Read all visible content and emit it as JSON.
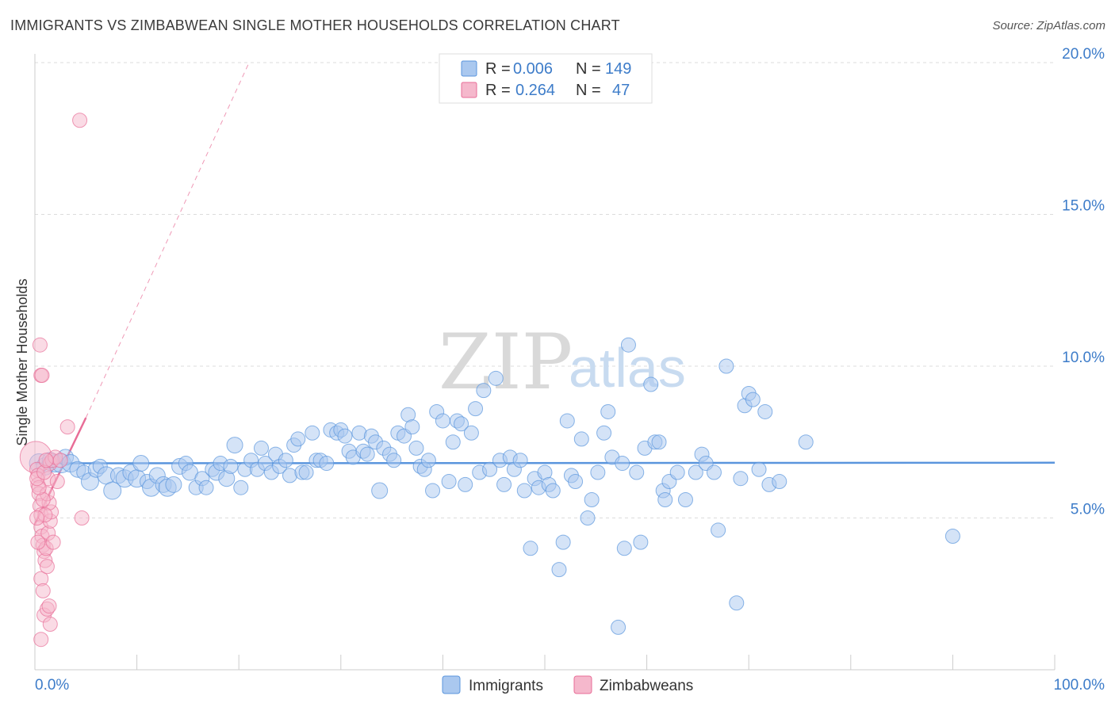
{
  "header": {
    "title": "IMMIGRANTS VS ZIMBABWEAN SINGLE MOTHER HOUSEHOLDS CORRELATION CHART",
    "source": "Source: ZipAtlas.com"
  },
  "watermark": {
    "zip": "ZIP",
    "atlas": "atlas"
  },
  "legend": {
    "rows": [
      {
        "r_label": "R =",
        "r_value": "0.006",
        "n_label": "N =",
        "n_value": "149",
        "color": "#aac8ef"
      },
      {
        "r_label": "R =",
        "r_value": "0.264",
        "n_label": "N =",
        "n_value": "47",
        "color": "#f5b8cc"
      }
    ]
  },
  "bottom_legend": {
    "items": [
      {
        "label": "Immigrants",
        "color": "#aac8ef"
      },
      {
        "label": "Zimbabweans",
        "color": "#f5b8cc"
      }
    ]
  },
  "chart_data": {
    "type": "scatter",
    "title": "IMMIGRANTS VS ZIMBABWEAN SINGLE MOTHER HOUSEHOLDS CORRELATION CHART",
    "xlabel": "",
    "ylabel": "Single Mother Households",
    "xlim": [
      0,
      100
    ],
    "ylim": [
      0,
      20.5
    ],
    "x_tick_labels": [
      "0.0%",
      "100.0%"
    ],
    "y_ticks": [
      5,
      10,
      15,
      20
    ],
    "y_tick_labels": [
      "5.0%",
      "10.0%",
      "15.0%",
      "20.0%"
    ],
    "grid": true,
    "legend_position": "top-center",
    "series": [
      {
        "name": "Immigrants",
        "color": "#5a95dd",
        "fill": "#aac8ef",
        "trend": {
          "x": [
            0,
            100
          ],
          "y": [
            6.8,
            6.82
          ]
        },
        "points": [
          [
            0.4,
            6.8
          ],
          [
            1.0,
            6.7
          ],
          [
            1.5,
            6.9
          ],
          [
            2.0,
            6.8
          ],
          [
            2.6,
            6.8
          ],
          [
            3.0,
            7.0
          ],
          [
            3.5,
            6.8
          ],
          [
            4.2,
            6.6
          ],
          [
            4.8,
            6.5
          ],
          [
            5.4,
            6.2
          ],
          [
            6.0,
            6.6
          ],
          [
            6.4,
            6.7
          ],
          [
            7.0,
            6.4
          ],
          [
            7.6,
            5.9
          ],
          [
            8.2,
            6.4
          ],
          [
            8.8,
            6.3
          ],
          [
            9.4,
            6.5
          ],
          [
            10.0,
            6.3
          ],
          [
            10.4,
            6.8
          ],
          [
            11.0,
            6.2
          ],
          [
            11.4,
            6.0
          ],
          [
            12.0,
            6.4
          ],
          [
            12.6,
            6.1
          ],
          [
            13.0,
            6.0
          ],
          [
            13.6,
            6.1
          ],
          [
            14.2,
            6.7
          ],
          [
            14.8,
            6.8
          ],
          [
            15.2,
            6.5
          ],
          [
            15.8,
            6.0
          ],
          [
            16.4,
            6.3
          ],
          [
            16.8,
            6.0
          ],
          [
            17.4,
            6.6
          ],
          [
            17.8,
            6.5
          ],
          [
            18.2,
            6.8
          ],
          [
            18.8,
            6.3
          ],
          [
            19.2,
            6.7
          ],
          [
            19.6,
            7.4
          ],
          [
            20.2,
            6.0
          ],
          [
            20.6,
            6.6
          ],
          [
            21.2,
            6.9
          ],
          [
            21.8,
            6.6
          ],
          [
            22.2,
            7.3
          ],
          [
            22.6,
            6.8
          ],
          [
            23.2,
            6.5
          ],
          [
            23.6,
            7.1
          ],
          [
            24.0,
            6.7
          ],
          [
            24.6,
            6.9
          ],
          [
            25.0,
            6.4
          ],
          [
            25.4,
            7.4
          ],
          [
            25.8,
            7.6
          ],
          [
            26.2,
            6.5
          ],
          [
            26.6,
            6.5
          ],
          [
            27.2,
            7.8
          ],
          [
            27.6,
            6.9
          ],
          [
            28.0,
            6.9
          ],
          [
            28.6,
            6.8
          ],
          [
            29.0,
            7.9
          ],
          [
            29.6,
            7.8
          ],
          [
            30.0,
            7.9
          ],
          [
            30.4,
            7.7
          ],
          [
            30.8,
            7.2
          ],
          [
            31.2,
            7.0
          ],
          [
            31.8,
            7.8
          ],
          [
            32.2,
            7.2
          ],
          [
            32.6,
            7.1
          ],
          [
            33.0,
            7.7
          ],
          [
            33.4,
            7.5
          ],
          [
            33.8,
            5.9
          ],
          [
            34.2,
            7.3
          ],
          [
            34.8,
            7.1
          ],
          [
            35.2,
            6.9
          ],
          [
            35.6,
            7.8
          ],
          [
            36.2,
            7.7
          ],
          [
            36.6,
            8.4
          ],
          [
            37.0,
            8.0
          ],
          [
            37.4,
            7.3
          ],
          [
            37.8,
            6.7
          ],
          [
            38.2,
            6.6
          ],
          [
            38.6,
            6.9
          ],
          [
            39.0,
            5.9
          ],
          [
            39.4,
            8.5
          ],
          [
            40.0,
            8.2
          ],
          [
            40.6,
            6.2
          ],
          [
            41.0,
            7.5
          ],
          [
            41.4,
            8.2
          ],
          [
            41.8,
            8.1
          ],
          [
            42.2,
            6.1
          ],
          [
            42.8,
            7.8
          ],
          [
            43.2,
            8.6
          ],
          [
            43.6,
            6.5
          ],
          [
            44.0,
            9.2
          ],
          [
            44.6,
            6.6
          ],
          [
            45.2,
            9.6
          ],
          [
            45.6,
            6.9
          ],
          [
            46.0,
            6.1
          ],
          [
            46.6,
            7.0
          ],
          [
            47.0,
            6.6
          ],
          [
            47.6,
            6.9
          ],
          [
            48.0,
            5.9
          ],
          [
            48.6,
            4.0
          ],
          [
            49.0,
            6.3
          ],
          [
            49.4,
            6.0
          ],
          [
            50.0,
            6.5
          ],
          [
            50.4,
            6.1
          ],
          [
            50.8,
            5.9
          ],
          [
            51.4,
            3.3
          ],
          [
            51.8,
            4.2
          ],
          [
            52.2,
            8.2
          ],
          [
            52.6,
            6.4
          ],
          [
            53.0,
            6.2
          ],
          [
            53.6,
            7.6
          ],
          [
            54.2,
            5.0
          ],
          [
            54.6,
            5.6
          ],
          [
            55.2,
            6.5
          ],
          [
            55.8,
            7.8
          ],
          [
            56.2,
            8.5
          ],
          [
            56.6,
            7.0
          ],
          [
            57.2,
            1.4
          ],
          [
            57.6,
            6.8
          ],
          [
            57.8,
            4.0
          ],
          [
            58.2,
            10.7
          ],
          [
            59.0,
            6.5
          ],
          [
            59.4,
            4.2
          ],
          [
            59.8,
            7.3
          ],
          [
            60.4,
            9.4
          ],
          [
            60.8,
            7.5
          ],
          [
            61.2,
            7.5
          ],
          [
            61.6,
            5.9
          ],
          [
            61.8,
            5.6
          ],
          [
            62.2,
            6.2
          ],
          [
            63.0,
            6.5
          ],
          [
            63.8,
            5.6
          ],
          [
            64.8,
            6.5
          ],
          [
            65.4,
            7.1
          ],
          [
            65.8,
            6.8
          ],
          [
            66.6,
            6.5
          ],
          [
            67.0,
            4.6
          ],
          [
            67.8,
            10.0
          ],
          [
            68.8,
            2.2
          ],
          [
            69.2,
            6.3
          ],
          [
            69.6,
            8.7
          ],
          [
            70.0,
            9.1
          ],
          [
            70.4,
            8.9
          ],
          [
            71.0,
            6.6
          ],
          [
            71.6,
            8.5
          ],
          [
            72.0,
            6.1
          ],
          [
            75.6,
            7.5
          ],
          [
            90.0,
            4.4
          ],
          [
            73.0,
            6.2
          ]
        ],
        "sizes": [
          24,
          22,
          20,
          22,
          24,
          20,
          22,
          20,
          18,
          22,
          20,
          18,
          22,
          22,
          20,
          22,
          20,
          22,
          20,
          18,
          22,
          20,
          20,
          22,
          20,
          20,
          18,
          20,
          18,
          18,
          18,
          18,
          20,
          18,
          20,
          18,
          20,
          18,
          18,
          18,
          18,
          18,
          18,
          18,
          18,
          18,
          18,
          18,
          18,
          18,
          18,
          18,
          18,
          18,
          18,
          18,
          18,
          18,
          18,
          18,
          18,
          18,
          18,
          18,
          18,
          18,
          18,
          20,
          18,
          18,
          18,
          18,
          18,
          18,
          18,
          18,
          18,
          18,
          18,
          18,
          18,
          18,
          18,
          18,
          18,
          18,
          18,
          18,
          18,
          18,
          18,
          18,
          18,
          18,
          18,
          18,
          18,
          18,
          18,
          18,
          18,
          18,
          18,
          18,
          18,
          18,
          18,
          18,
          18,
          18,
          18,
          18,
          18,
          18,
          18,
          18,
          18,
          18,
          18,
          18,
          18,
          18,
          18,
          18,
          18,
          18,
          18,
          18,
          18,
          18,
          18,
          18,
          18,
          18,
          18,
          18,
          18,
          18,
          18,
          18,
          18,
          18,
          18,
          18,
          18,
          18,
          18,
          18,
          18
        ]
      },
      {
        "name": "Zimbabweans",
        "color": "#e86d97",
        "fill": "#f5b8cc",
        "trend": {
          "x": [
            0,
            5
          ],
          "y": [
            4.8,
            8.3
          ]
        },
        "trend_dashed": {
          "x": [
            5,
            21
          ],
          "y": [
            8.3,
            20.0
          ]
        },
        "points": [
          [
            0.1,
            7.0
          ],
          [
            0.2,
            6.6
          ],
          [
            0.3,
            6.4
          ],
          [
            0.3,
            6.1
          ],
          [
            0.4,
            5.8
          ],
          [
            0.5,
            5.4
          ],
          [
            0.6,
            5.1
          ],
          [
            0.6,
            4.7
          ],
          [
            0.7,
            4.4
          ],
          [
            0.8,
            4.1
          ],
          [
            0.5,
            10.7
          ],
          [
            0.6,
            9.7
          ],
          [
            0.7,
            9.7
          ],
          [
            0.9,
            3.9
          ],
          [
            1.0,
            3.6
          ],
          [
            0.6,
            3.0
          ],
          [
            0.8,
            2.6
          ],
          [
            0.9,
            1.8
          ],
          [
            0.6,
            1.0
          ],
          [
            1.2,
            2.0
          ],
          [
            1.4,
            2.1
          ],
          [
            1.5,
            1.5
          ],
          [
            1.2,
            3.4
          ],
          [
            1.1,
            4.0
          ],
          [
            1.3,
            4.5
          ],
          [
            1.5,
            4.9
          ],
          [
            1.6,
            5.2
          ],
          [
            1.4,
            5.5
          ],
          [
            1.2,
            5.8
          ],
          [
            1.3,
            6.3
          ],
          [
            1.5,
            6.8
          ],
          [
            1.7,
            6.9
          ],
          [
            2.0,
            7.0
          ],
          [
            2.2,
            6.2
          ],
          [
            2.5,
            6.9
          ],
          [
            1.8,
            4.2
          ],
          [
            1.0,
            5.1
          ],
          [
            0.8,
            5.6
          ],
          [
            0.4,
            6.0
          ],
          [
            0.2,
            6.3
          ],
          [
            3.2,
            8.0
          ],
          [
            4.6,
            5.0
          ],
          [
            4.4,
            18.1
          ],
          [
            0.2,
            5.0
          ],
          [
            0.3,
            4.2
          ],
          [
            0.9,
            6.5
          ],
          [
            1.1,
            6.9
          ]
        ],
        "sizes": [
          40,
          18,
          18,
          18,
          18,
          18,
          18,
          18,
          18,
          18,
          18,
          18,
          18,
          18,
          18,
          18,
          18,
          18,
          18,
          18,
          18,
          18,
          18,
          18,
          18,
          18,
          18,
          18,
          18,
          18,
          18,
          18,
          18,
          18,
          18,
          18,
          18,
          18,
          18,
          18,
          18,
          18,
          18,
          18,
          18,
          18,
          18
        ]
      }
    ]
  }
}
